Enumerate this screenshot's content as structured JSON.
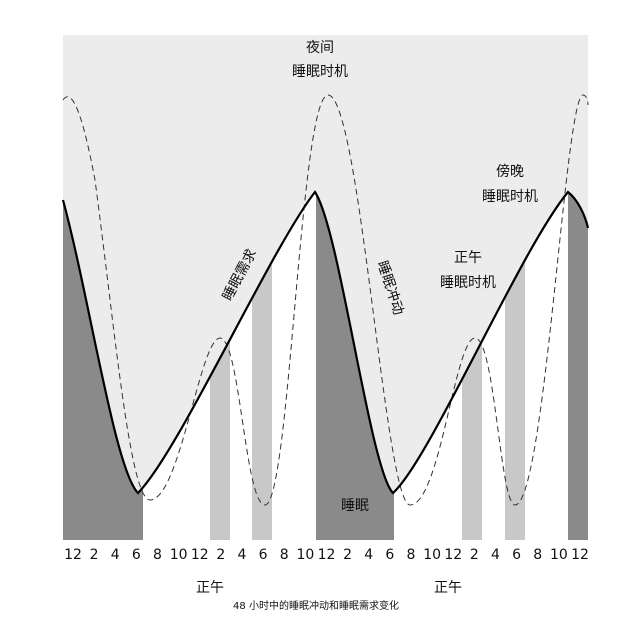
{
  "labels": {
    "night_top": "夜间",
    "night_bottom": "睡眠时机",
    "sleep_need": "睡眠需求",
    "sleep_drive": "睡眠冲动",
    "noon_top": "正午",
    "noon_bottom": "睡眠时机",
    "evening_top": "傍晚",
    "evening_bottom": "睡眠时机",
    "sleep": "睡眠"
  },
  "axis": {
    "hours": [
      12,
      2,
      4,
      6,
      8,
      10,
      12,
      2,
      4,
      6,
      8,
      10,
      12,
      2,
      4,
      6,
      8,
      10,
      12,
      2,
      4,
      6,
      8,
      10,
      12
    ],
    "noon_labels": [
      "正午",
      "正午"
    ]
  },
  "caption": "48 小时中的睡眠冲动和睡眠需求变化"
}
